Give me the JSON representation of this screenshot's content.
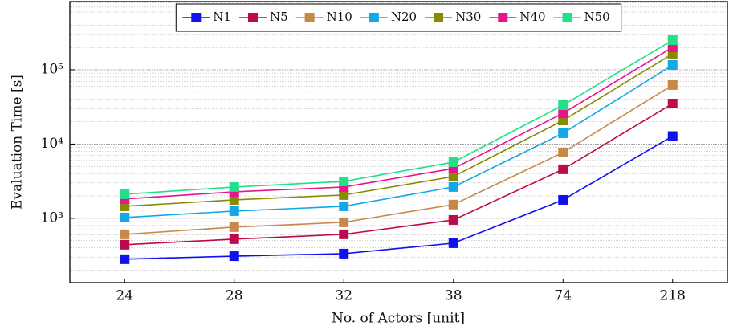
{
  "chart_data": {
    "type": "line",
    "x_label": "No. of Actors [unit]",
    "y_label": "Evaluation Time [s]",
    "categories": [
      "24",
      "28",
      "32",
      "38",
      "74",
      "218"
    ],
    "log_y": true,
    "grid": true,
    "legend_position": "top",
    "ylim": [
      136,
      830000
    ],
    "yticks": [
      {
        "value": 1000,
        "label": "10³"
      },
      {
        "value": 10000,
        "label": "10⁴"
      },
      {
        "value": 100000,
        "label": "10⁵"
      }
    ],
    "yticks_minor": [
      200,
      300,
      400,
      500,
      600,
      700,
      800,
      900,
      2000,
      3000,
      4000,
      5000,
      6000,
      7000,
      8000,
      9000,
      20000,
      30000,
      40000,
      50000,
      60000,
      70000,
      80000,
      90000,
      200000,
      300000,
      400000,
      500000,
      600000,
      700000,
      800000
    ],
    "series": [
      {
        "name": "N1",
        "color": "#1010f0",
        "values": [
          281,
          309,
          334,
          462,
          1770,
          12800
        ]
      },
      {
        "name": "N5",
        "color": "#be0a48",
        "values": [
          440,
          524,
          608,
          950,
          4570,
          35100
        ]
      },
      {
        "name": "N10",
        "color": "#c8884a",
        "values": [
          608,
          761,
          883,
          1530,
          7690,
          62400
        ]
      },
      {
        "name": "N20",
        "color": "#12a8e8",
        "values": [
          1025,
          1250,
          1450,
          2640,
          14000,
          116000
        ]
      },
      {
        "name": "N30",
        "color": "#8a8a00",
        "values": [
          1450,
          1770,
          2060,
          3650,
          20800,
          164000
        ]
      },
      {
        "name": "N40",
        "color": "#e8148c",
        "values": [
          1820,
          2270,
          2640,
          4680,
          26000,
          201000
        ]
      },
      {
        "name": "N50",
        "color": "#22e088",
        "values": [
          2110,
          2640,
          3140,
          5710,
          33400,
          251000
        ]
      }
    ]
  }
}
